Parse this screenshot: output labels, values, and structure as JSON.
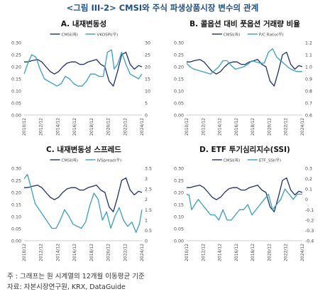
{
  "figure_title": "<그림 III-2> CMSI와 주식 파생상품시장 변수의 관계",
  "footnote": "주 : 그래프는 원 시계열의 12개월 이동평균 기준",
  "source": "자료: 자본시장연구원, KRX, DataGuide",
  "colors": {
    "cmsi": "#1f2f6b",
    "other": "#3a9ec2",
    "axis": "#bbbbbb",
    "text": "#444444"
  },
  "x_ticks": [
    "2010/12",
    "2012/12",
    "2014/12",
    "2016/12",
    "2018/12",
    "2020/12",
    "2022/12",
    "2024/12"
  ],
  "chart_data": [
    {
      "type": "line",
      "title": "A. 내재변동성",
      "legend": [
        "CMSI(좌)",
        "VKOSPI(우)"
      ],
      "ylim_left": [
        0,
        0.3
      ],
      "yticks_left": [
        "0.00",
        "0.05",
        "0.10",
        "0.15",
        "0.20",
        "0.25",
        "0.30"
      ],
      "ylim_right": [
        0,
        30
      ],
      "yticks_right": [
        "0",
        "5",
        "10",
        "15",
        "20",
        "25",
        "30"
      ],
      "series": [
        {
          "name": "CMSI(좌)",
          "axis": "left",
          "x": [
            2010.9,
            2011.3,
            2011.8,
            2012.5,
            2013.0,
            2013.5,
            2014.0,
            2014.5,
            2015.0,
            2015.5,
            2016.0,
            2016.5,
            2017.0,
            2017.5,
            2018.0,
            2018.5,
            2019.0,
            2019.5,
            2020.0,
            2020.5,
            2021.0,
            2021.5,
            2022.0,
            2022.5,
            2023.0,
            2023.5,
            2024.0,
            2024.5,
            2024.9
          ],
          "values": [
            0.22,
            0.22,
            0.225,
            0.23,
            0.22,
            0.2,
            0.18,
            0.17,
            0.18,
            0.2,
            0.215,
            0.22,
            0.22,
            0.21,
            0.21,
            0.22,
            0.225,
            0.23,
            0.21,
            0.2,
            0.14,
            0.12,
            0.18,
            0.25,
            0.26,
            0.21,
            0.19,
            0.205,
            0.2
          ]
        },
        {
          "name": "VKOSPI(우)",
          "axis": "right",
          "x": [
            2010.9,
            2011.3,
            2011.8,
            2012.3,
            2012.8,
            2013.3,
            2013.8,
            2014.3,
            2014.8,
            2015.3,
            2015.8,
            2016.3,
            2016.8,
            2017.3,
            2017.8,
            2018.3,
            2018.8,
            2019.3,
            2019.8,
            2020.3,
            2020.8,
            2021.3,
            2021.6,
            2022.0,
            2022.5,
            2023.0,
            2023.5,
            2024.0,
            2024.5,
            2024.9
          ],
          "values": [
            17,
            21,
            25,
            24,
            19,
            15,
            14,
            13,
            12,
            13,
            16,
            15,
            13,
            12,
            12,
            14,
            17,
            17,
            16,
            16,
            26,
            27,
            19,
            21,
            26,
            21,
            17,
            16,
            15,
            17
          ]
        }
      ]
    },
    {
      "type": "line",
      "title": "B. 콜옵션 대비 풋옵션 거래량 비율",
      "legend": [
        "CMSI(좌)",
        "P/C Ratio(우)"
      ],
      "ylim_left": [
        0,
        0.3
      ],
      "yticks_left": [
        "0.00",
        "0.05",
        "0.10",
        "0.15",
        "0.20",
        "0.25",
        "0.30"
      ],
      "ylim_right": [
        0.6,
        1.2
      ],
      "yticks_right": [
        "0.6",
        "0.7",
        "0.8",
        "0.9",
        "1.0",
        "1.1",
        "1.2"
      ],
      "series": [
        {
          "name": "CMSI(좌)",
          "axis": "left",
          "x": [
            2010.9,
            2011.3,
            2011.8,
            2012.5,
            2013.0,
            2013.5,
            2014.0,
            2014.5,
            2015.0,
            2015.5,
            2016.0,
            2016.5,
            2017.0,
            2017.5,
            2018.0,
            2018.5,
            2019.0,
            2019.5,
            2020.0,
            2020.5,
            2021.0,
            2021.5,
            2022.0,
            2022.5,
            2023.0,
            2023.5,
            2024.0,
            2024.5,
            2024.9
          ],
          "values": [
            0.22,
            0.22,
            0.225,
            0.23,
            0.22,
            0.2,
            0.18,
            0.17,
            0.18,
            0.2,
            0.215,
            0.22,
            0.22,
            0.21,
            0.21,
            0.22,
            0.225,
            0.23,
            0.21,
            0.2,
            0.14,
            0.12,
            0.18,
            0.25,
            0.26,
            0.21,
            0.19,
            0.205,
            0.2
          ]
        },
        {
          "name": "P/C Ratio(우)",
          "axis": "right",
          "x": [
            2010.9,
            2011.3,
            2011.8,
            2012.3,
            2012.8,
            2013.3,
            2013.8,
            2014.3,
            2014.8,
            2015.3,
            2015.8,
            2016.3,
            2016.8,
            2017.3,
            2017.8,
            2018.3,
            2018.8,
            2019.3,
            2019.8,
            2020.3,
            2020.8,
            2021.3,
            2021.8,
            2022.3,
            2022.8,
            2023.3,
            2023.8,
            2024.3,
            2024.9
          ],
          "values": [
            1.03,
            1.0,
            0.98,
            0.97,
            0.96,
            0.95,
            0.94,
            0.97,
            1.0,
            1.05,
            1.05,
            1.01,
            0.98,
            0.99,
            1.0,
            1.02,
            1.05,
            1.04,
            1.03,
            1.03,
            1.12,
            1.15,
            1.08,
            1.05,
            1.02,
            0.99,
            0.97,
            0.96,
            0.96
          ]
        }
      ]
    },
    {
      "type": "line",
      "title": "C. 내재변동성 스프레드",
      "legend": [
        "CMSI(좌)",
        "IVSpread(우)"
      ],
      "ylim_left": [
        0,
        0.3
      ],
      "yticks_left": [
        "0.00",
        "0.05",
        "0.10",
        "0.15",
        "0.20",
        "0.25",
        "0.30"
      ],
      "ylim_right": [
        0,
        3.5
      ],
      "yticks_right": [
        "0",
        "0.5",
        "1",
        "1.5",
        "2",
        "2.5",
        "3",
        "3.5"
      ],
      "series": [
        {
          "name": "CMSI(좌)",
          "axis": "left",
          "x": [
            2010.9,
            2011.3,
            2011.8,
            2012.5,
            2013.0,
            2013.5,
            2014.0,
            2014.5,
            2015.0,
            2015.5,
            2016.0,
            2016.5,
            2017.0,
            2017.5,
            2018.0,
            2018.5,
            2019.0,
            2019.5,
            2020.0,
            2020.5,
            2021.0,
            2021.5,
            2022.0,
            2022.5,
            2023.0,
            2023.5,
            2024.0,
            2024.5,
            2024.9
          ],
          "values": [
            0.22,
            0.22,
            0.225,
            0.23,
            0.22,
            0.2,
            0.18,
            0.17,
            0.18,
            0.2,
            0.215,
            0.22,
            0.22,
            0.21,
            0.21,
            0.22,
            0.225,
            0.23,
            0.21,
            0.2,
            0.14,
            0.12,
            0.18,
            0.25,
            0.26,
            0.21,
            0.19,
            0.205,
            0.2
          ]
        },
        {
          "name": "IVSpread(우)",
          "axis": "right",
          "x": [
            2010.9,
            2011.3,
            2011.7,
            2012.2,
            2012.7,
            2013.2,
            2013.7,
            2014.2,
            2014.7,
            2015.2,
            2015.7,
            2016.2,
            2016.7,
            2017.2,
            2017.7,
            2018.2,
            2018.7,
            2019.2,
            2019.7,
            2020.2,
            2020.7,
            2021.2,
            2021.7,
            2022.2,
            2022.7,
            2023.2,
            2023.7,
            2024.2,
            2024.6,
            2024.9
          ],
          "values": [
            3.0,
            3.2,
            2.6,
            1.8,
            1.5,
            1.2,
            0.9,
            0.6,
            0.6,
            1.0,
            1.5,
            1.2,
            0.8,
            0.7,
            0.6,
            0.9,
            1.7,
            2.3,
            2.0,
            1.0,
            1.4,
            0.6,
            1.2,
            1.6,
            1.0,
            0.7,
            0.9,
            0.4,
            0.8,
            1.5
          ]
        }
      ]
    },
    {
      "type": "line",
      "title": "D. ETF 투기심리지수(SSI)",
      "legend": [
        "CMSI(좌)",
        "ETF_SSI(우)"
      ],
      "ylim_left": [
        0,
        0.3
      ],
      "yticks_left": [
        "0.00",
        "0.05",
        "0.10",
        "0.15",
        "0.20",
        "0.25",
        "0.30"
      ],
      "ylim_right": [
        -0.4,
        0.3
      ],
      "yticks_right": [
        "-0.4",
        "-0.3",
        "-0.2",
        "-0.1",
        "0",
        "0.1",
        "0.2",
        "0.3"
      ],
      "series": [
        {
          "name": "CMSI(좌)",
          "axis": "left",
          "x": [
            2010.9,
            2011.3,
            2011.8,
            2012.5,
            2013.0,
            2013.5,
            2014.0,
            2014.5,
            2015.0,
            2015.5,
            2016.0,
            2016.5,
            2017.0,
            2017.5,
            2018.0,
            2018.5,
            2019.0,
            2019.5,
            2020.0,
            2020.5,
            2021.0,
            2021.5,
            2022.0,
            2022.5,
            2023.0,
            2023.5,
            2024.0,
            2024.5,
            2024.9
          ],
          "values": [
            0.22,
            0.22,
            0.225,
            0.23,
            0.22,
            0.2,
            0.18,
            0.17,
            0.18,
            0.2,
            0.215,
            0.22,
            0.22,
            0.21,
            0.21,
            0.22,
            0.225,
            0.23,
            0.21,
            0.2,
            0.14,
            0.12,
            0.18,
            0.25,
            0.26,
            0.21,
            0.19,
            0.205,
            0.2
          ]
        },
        {
          "name": "ETF_SSI(우)",
          "axis": "right",
          "x": [
            2010.9,
            2011.2,
            2011.5,
            2011.9,
            2012.3,
            2012.8,
            2013.3,
            2013.8,
            2014.3,
            2014.8,
            2015.3,
            2015.8,
            2016.3,
            2016.8,
            2017.3,
            2017.8,
            2018.3,
            2018.8,
            2019.3,
            2019.8,
            2020.3,
            2020.8,
            2021.3,
            2021.8,
            2022.3,
            2022.8,
            2023.3,
            2023.8,
            2024.3,
            2024.9
          ],
          "values": [
            0.05,
            0.04,
            -0.1,
            -0.05,
            0.0,
            -0.05,
            -0.1,
            -0.15,
            -0.15,
            -0.2,
            -0.1,
            -0.2,
            -0.2,
            -0.15,
            -0.1,
            -0.1,
            -0.05,
            -0.15,
            -0.1,
            -0.05,
            0.0,
            0.05,
            -0.1,
            -0.05,
            0.0,
            0.1,
            0.05,
            0.0,
            0.05,
            0.05
          ]
        }
      ]
    }
  ]
}
